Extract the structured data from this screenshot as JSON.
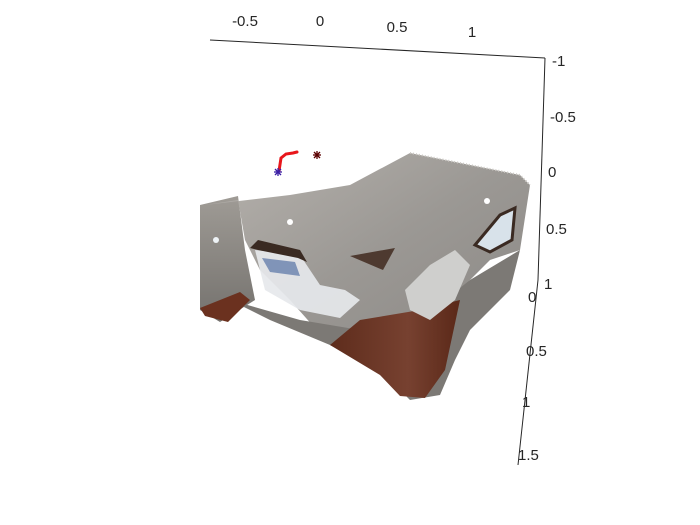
{
  "chart_data": {
    "type": "scatter",
    "title": "",
    "xlabel": "",
    "ylabel": "",
    "zlabel": "",
    "axes": {
      "x": {
        "ticks": [
          "-0.5",
          "0",
          "0.5",
          "1"
        ]
      },
      "y": {
        "ticks": [
          "-1",
          "-0.5",
          "0",
          "0.5",
          "1"
        ]
      },
      "z": {
        "ticks": [
          "0",
          "0.5",
          "1",
          "1.5"
        ]
      }
    },
    "grid": false,
    "series": [
      {
        "kind": "colored-point-cloud",
        "description_colors": [
          "#8d8b89",
          "#a19e9b",
          "#6f3a25",
          "#e9ecef",
          "#5b6f8a"
        ]
      },
      {
        "kind": "trajectory",
        "color": "#e8161b"
      },
      {
        "kind": "start-marker",
        "marker": "*",
        "color": "#3a1fa5"
      },
      {
        "kind": "end-marker",
        "marker": "*",
        "color": "#6b0000"
      }
    ]
  }
}
